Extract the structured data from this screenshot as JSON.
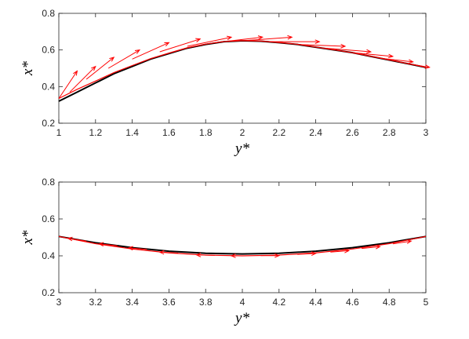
{
  "chart_data": [
    {
      "type": "line",
      "xlabel": "y*",
      "ylabel": "x*",
      "xlim": [
        1,
        3
      ],
      "ylim": [
        0.2,
        0.8
      ],
      "xticks": [
        1,
        1.2,
        1.4,
        1.6,
        1.8,
        2,
        2.2,
        2.4,
        2.6,
        2.8,
        3
      ],
      "yticks": [
        0.2,
        0.4,
        0.6,
        0.8
      ],
      "x": [
        1,
        1.1,
        1.2,
        1.3,
        1.4,
        1.5,
        1.6,
        1.7,
        1.8,
        1.9,
        2,
        2.1,
        2.2,
        2.3,
        2.4,
        2.5,
        2.6,
        2.7,
        2.8,
        2.9,
        3
      ],
      "series": [
        {
          "color": "#000000",
          "values": [
            0.32,
            0.37,
            0.42,
            0.47,
            0.51,
            0.55,
            0.58,
            0.61,
            0.63,
            0.645,
            0.65,
            0.648,
            0.64,
            0.63,
            0.615,
            0.6,
            0.585,
            0.565,
            0.545,
            0.525,
            0.505
          ]
        },
        {
          "color": "#ff0000",
          "values": [
            0.335,
            0.385,
            0.43,
            0.476,
            0.515,
            0.553,
            0.583,
            0.612,
            0.632,
            0.646,
            0.651,
            0.649,
            0.641,
            0.631,
            0.616,
            0.601,
            0.585,
            0.566,
            0.546,
            0.526,
            0.506
          ]
        }
      ],
      "quiver": {
        "color": "#ff0000",
        "x": [
          1,
          1.06,
          1.15,
          1.27,
          1.4,
          1.55,
          1.7,
          1.85,
          2,
          2.15,
          2.3,
          2.45,
          2.6,
          2.75,
          2.9
        ],
        "y": [
          0.335,
          0.37,
          0.44,
          0.5,
          0.55,
          0.59,
          0.62,
          0.64,
          0.65,
          0.645,
          0.63,
          0.61,
          0.585,
          0.555,
          0.525
        ],
        "u": [
          0.1,
          0.14,
          0.15,
          0.17,
          0.2,
          0.22,
          0.24,
          0.26,
          0.27,
          0.27,
          0.26,
          0.25,
          0.22,
          0.18,
          0.12
        ],
        "v": [
          0.15,
          0.14,
          0.12,
          0.1,
          0.09,
          0.07,
          0.05,
          0.03,
          0.02,
          0.0,
          -0.01,
          -0.02,
          -0.02,
          -0.02,
          -0.02
        ]
      }
    },
    {
      "type": "line",
      "xlabel": "y*",
      "ylabel": "x*",
      "xlim": [
        3,
        5
      ],
      "ylim": [
        0.2,
        0.8
      ],
      "xticks": [
        3,
        3.2,
        3.4,
        3.6,
        3.8,
        4,
        4.2,
        4.4,
        4.6,
        4.8,
        5
      ],
      "yticks": [
        0.2,
        0.4,
        0.6,
        0.8
      ],
      "x": [
        3,
        3.2,
        3.4,
        3.6,
        3.8,
        4,
        4.2,
        4.4,
        4.6,
        4.8,
        5
      ],
      "series": [
        {
          "color": "#000000",
          "values": [
            0.505,
            0.471,
            0.444,
            0.425,
            0.414,
            0.41,
            0.414,
            0.425,
            0.444,
            0.471,
            0.505
          ]
        },
        {
          "color": "#ff0000",
          "values": [
            0.505,
            0.466,
            0.437,
            0.416,
            0.404,
            0.4,
            0.404,
            0.416,
            0.437,
            0.466,
            0.505
          ]
        }
      ],
      "quiver": {
        "color": "#ff0000",
        "x": [
          3.15,
          3.32,
          3.48,
          3.65,
          3.85,
          4.02,
          4.1,
          4.3,
          4.48,
          4.65,
          4.82
        ],
        "y": [
          0.48,
          0.455,
          0.435,
          0.415,
          0.402,
          0.4,
          0.401,
          0.408,
          0.42,
          0.44,
          0.465
        ],
        "u": [
          -0.1,
          -0.1,
          -0.1,
          -0.1,
          -0.1,
          -0.08,
          0.1,
          0.1,
          0.1,
          0.1,
          0.1
        ],
        "v": [
          0.015,
          0.01,
          0.008,
          0.005,
          0.003,
          0.0,
          0.0,
          0.005,
          0.008,
          0.01,
          0.015
        ]
      }
    }
  ]
}
